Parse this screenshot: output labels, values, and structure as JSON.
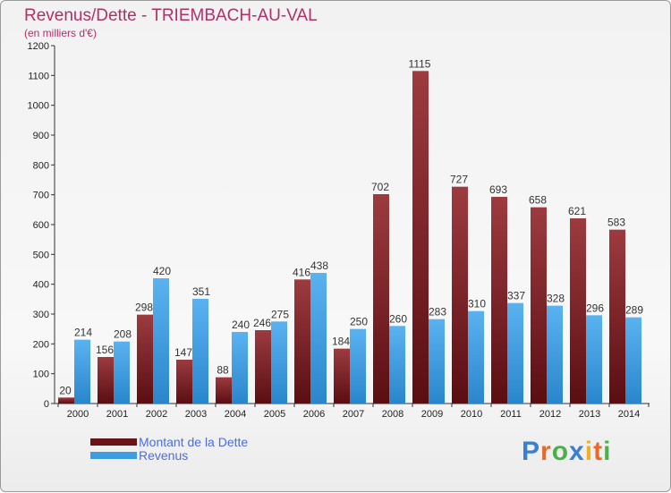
{
  "chart_data": {
    "type": "bar",
    "title": "Revenus/Dette - TRIEMBACH-AU-VAL",
    "subtitle": "(en milliers d'€)",
    "categories": [
      "2000",
      "2001",
      "2002",
      "2003",
      "2004",
      "2005",
      "2006",
      "2007",
      "2008",
      "2009",
      "2010",
      "2011",
      "2012",
      "2013",
      "2014"
    ],
    "series": [
      {
        "name": "Montant de la Dette",
        "color": "#7a1a1e",
        "values": [
          20,
          156,
          298,
          147,
          88,
          246,
          416,
          184,
          702,
          1115,
          727,
          693,
          658,
          621,
          583
        ]
      },
      {
        "name": "Revenus",
        "color": "#3d9de0",
        "values": [
          214,
          208,
          420,
          351,
          240,
          275,
          438,
          250,
          260,
          283,
          310,
          337,
          328,
          296,
          289
        ]
      }
    ],
    "yticks": [
      0,
      100,
      200,
      300,
      400,
      500,
      600,
      700,
      800,
      900,
      1000,
      1100,
      1200
    ],
    "ylim": [
      0,
      1200
    ],
    "xlabel": "",
    "ylabel": "",
    "grid": false,
    "legend": "bottom-left"
  },
  "logo": {
    "text": "Proxiti"
  }
}
